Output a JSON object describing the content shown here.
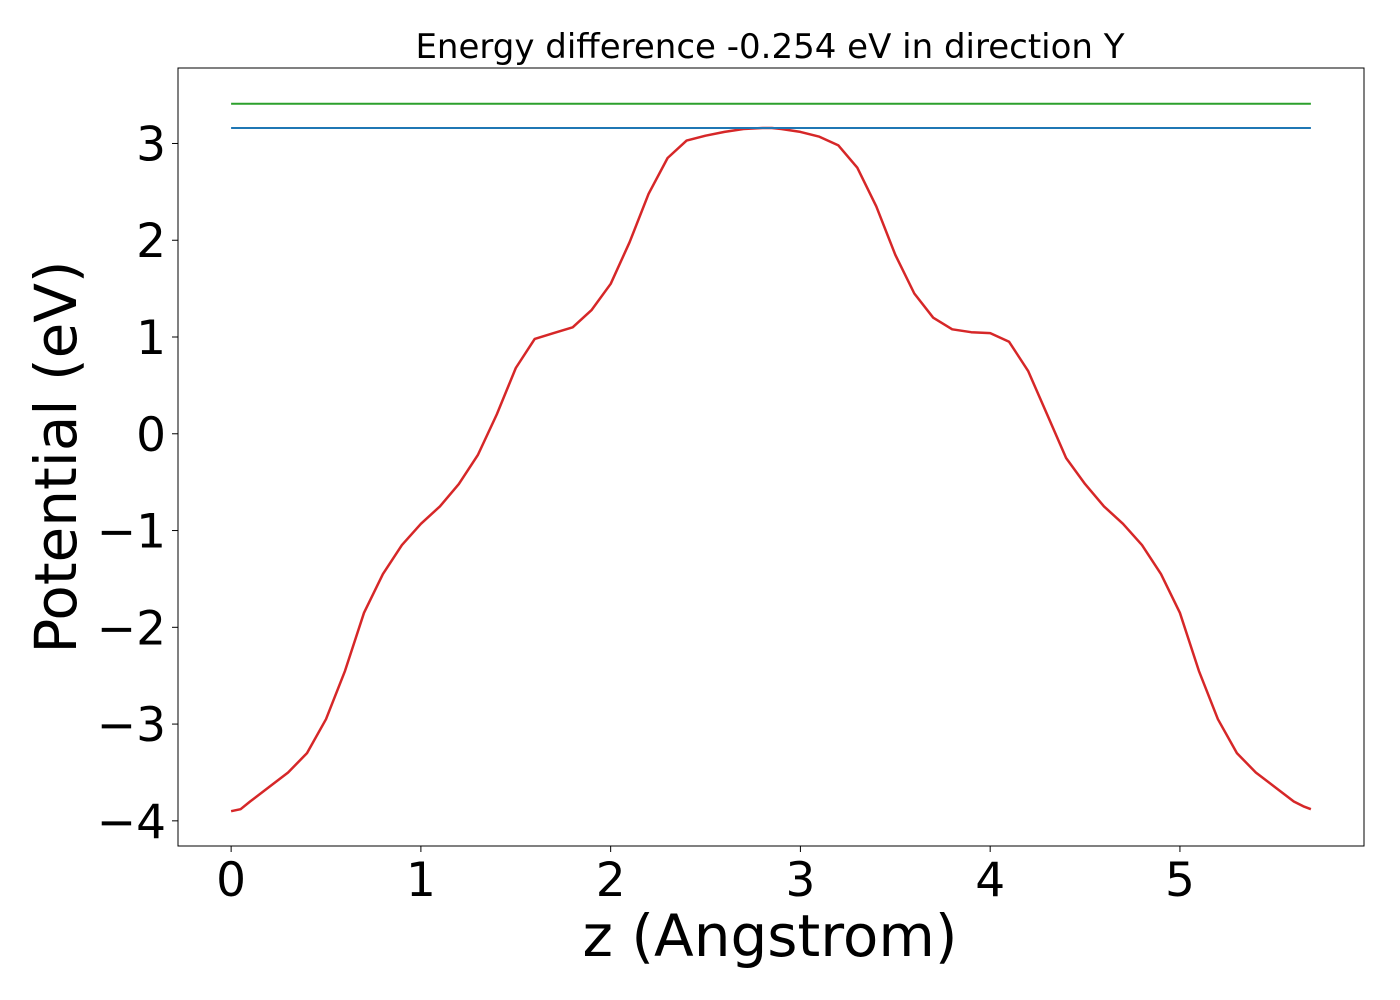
{
  "chart_data": {
    "type": "line",
    "title": "Energy difference -0.254 eV in direction Y",
    "xlabel": "z (Angstrom)",
    "ylabel": "Potential (eV)",
    "xlim": [
      -0.28,
      5.97
    ],
    "ylim": [
      -4.26,
      3.78
    ],
    "xticks": [
      0,
      1,
      2,
      3,
      4,
      5
    ],
    "yticks": [
      -4,
      -3,
      -2,
      -1,
      0,
      1,
      2,
      3
    ],
    "ytick_labels": [
      "−4",
      "−3",
      "−2",
      "−1",
      "0",
      "1",
      "2",
      "3"
    ],
    "grid": false,
    "legend": "none",
    "series": [
      {
        "color": "#d62728",
        "x": [
          0.0,
          0.05,
          0.1,
          0.2,
          0.3,
          0.4,
          0.5,
          0.6,
          0.7,
          0.8,
          0.9,
          1.0,
          1.1,
          1.2,
          1.3,
          1.4,
          1.5,
          1.6,
          1.7,
          1.8,
          1.9,
          2.0,
          2.1,
          2.2,
          2.3,
          2.4,
          2.5,
          2.6,
          2.7,
          2.8,
          2.85,
          2.9,
          3.0,
          3.1,
          3.2,
          3.3,
          3.4,
          3.5,
          3.6,
          3.7,
          3.8,
          3.9,
          4.0,
          4.1,
          4.2,
          4.3,
          4.4,
          4.5,
          4.6,
          4.7,
          4.8,
          4.9,
          5.0,
          5.1,
          5.2,
          5.3,
          5.4,
          5.5,
          5.6,
          5.65,
          5.69
        ],
        "values": [
          -3.9,
          -3.88,
          -3.8,
          -3.65,
          -3.5,
          -3.3,
          -2.95,
          -2.45,
          -1.85,
          -1.45,
          -1.15,
          -0.93,
          -0.75,
          -0.52,
          -0.22,
          0.2,
          0.68,
          0.98,
          1.04,
          1.1,
          1.28,
          1.55,
          1.98,
          2.48,
          2.85,
          3.03,
          3.08,
          3.12,
          3.15,
          3.16,
          3.16,
          3.15,
          3.12,
          3.07,
          2.98,
          2.75,
          2.35,
          1.85,
          1.45,
          1.2,
          1.08,
          1.05,
          1.04,
          0.95,
          0.65,
          0.2,
          -0.25,
          -0.52,
          -0.75,
          -0.93,
          -1.15,
          -1.45,
          -1.85,
          -2.45,
          -2.95,
          -3.3,
          -3.5,
          -3.65,
          -3.8,
          -3.85,
          -3.88
        ]
      },
      {
        "color": "#1f77b4",
        "x": [
          0.0,
          5.69
        ],
        "values": [
          3.16,
          3.16
        ]
      },
      {
        "color": "#2ca02c",
        "x": [
          0.0,
          5.69
        ],
        "values": [
          3.41,
          3.41
        ]
      }
    ]
  }
}
